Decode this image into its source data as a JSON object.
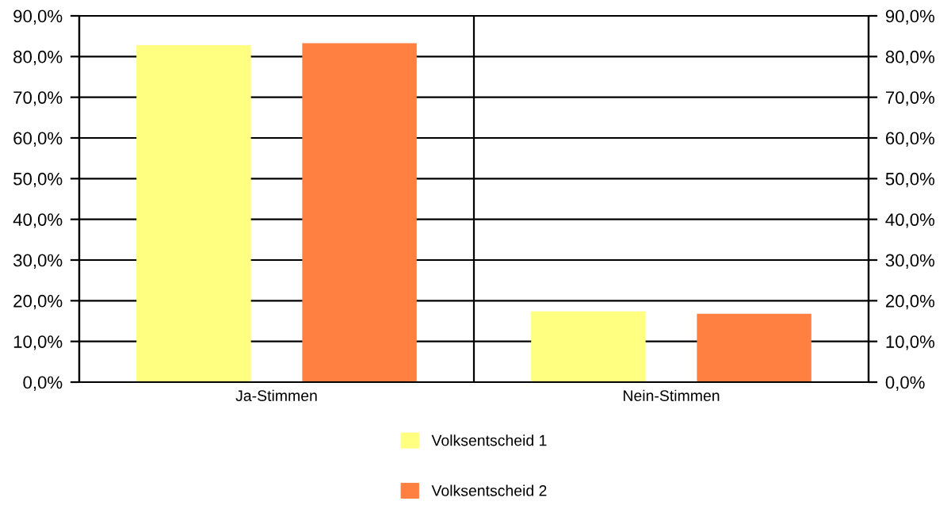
{
  "chart_data": {
    "type": "bar",
    "categories": [
      "Ja-Stimmen",
      "Nein-Stimmen"
    ],
    "series": [
      {
        "name": "Volksentscheid 1",
        "color": "#ffff80",
        "values": [
          82.8,
          17.4
        ]
      },
      {
        "name": "Volksentscheid 2",
        "color": "#ff8040",
        "values": [
          83.3,
          16.8
        ]
      }
    ],
    "ylim": [
      0,
      90
    ],
    "yticks": [
      {
        "value": 0,
        "label": "0,0%"
      },
      {
        "value": 10,
        "label": "10,0%"
      },
      {
        "value": 20,
        "label": "20,0%"
      },
      {
        "value": 30,
        "label": "30,0%"
      },
      {
        "value": 40,
        "label": "40,0%"
      },
      {
        "value": 50,
        "label": "50,0%"
      },
      {
        "value": 60,
        "label": "60,0%"
      },
      {
        "value": 70,
        "label": "70,0%"
      },
      {
        "value": 80,
        "label": "80,0%"
      },
      {
        "value": 90,
        "label": "90,0%"
      }
    ],
    "y2lim": [
      0,
      90
    ],
    "y2ticks": [
      {
        "value": 0,
        "label": "0,0%"
      },
      {
        "value": 10,
        "label": "10,0%"
      },
      {
        "value": 20,
        "label": "20,0%"
      },
      {
        "value": 30,
        "label": "30,0%"
      },
      {
        "value": 40,
        "label": "40,0%"
      },
      {
        "value": 50,
        "label": "50,0%"
      },
      {
        "value": 60,
        "label": "60,0%"
      },
      {
        "value": 70,
        "label": "70,0%"
      },
      {
        "value": 80,
        "label": "80,0%"
      },
      {
        "value": 90,
        "label": "90,0%"
      }
    ],
    "grid": true,
    "legend": "bottom"
  }
}
